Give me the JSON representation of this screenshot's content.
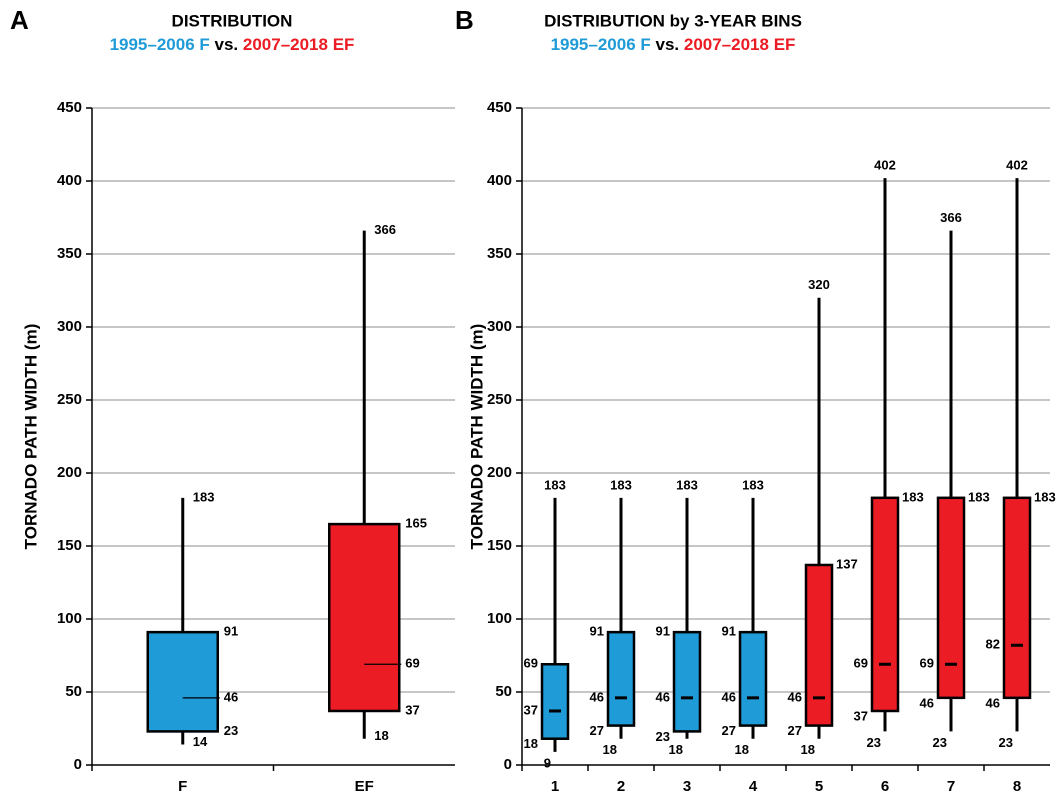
{
  "chart_data": [
    {
      "type": "box",
      "panel_label": "A",
      "title": "DISTRIBUTION",
      "subtitle": [
        {
          "text": "1995–2006 F",
          "color": "#1f9bd7"
        },
        {
          "text": "vs.",
          "color": "#000000"
        },
        {
          "text": "2007–2018 EF",
          "color": "#ec1c24"
        }
      ],
      "y_label": "TORNADO PATH WIDTH (m)",
      "categories": [
        "F",
        "EF"
      ],
      "boxes": [
        {
          "min": 14,
          "q1": 23,
          "median": 46,
          "q3": 91,
          "max": 183,
          "color": "#1f9bd7"
        },
        {
          "min": 18,
          "q1": 37,
          "median": 69,
          "q3": 165,
          "max": 366,
          "color": "#ec1c24"
        }
      ],
      "ylim": [
        0,
        450
      ],
      "yticks": [
        0,
        50,
        100,
        150,
        200,
        250,
        300,
        350,
        400,
        450
      ],
      "grid": true
    },
    {
      "type": "box",
      "panel_label": "B",
      "title": "DISTRIBUTION  by 3-YEAR BINS",
      "subtitle": [
        {
          "text": "1995–2006 F",
          "color": "#1f9bd7"
        },
        {
          "text": "vs.",
          "color": "#000000"
        },
        {
          "text": "2007–2018 EF",
          "color": "#ec1c24"
        }
      ],
      "y_label": "TORNADO PATH WIDTH (m)",
      "categories": [
        "1",
        "2",
        "3",
        "4",
        "5",
        "6",
        "7",
        "8"
      ],
      "boxes": [
        {
          "min": 9,
          "q1": 18,
          "median": 37,
          "q3": 69,
          "max": 183,
          "color": "#1f9bd7"
        },
        {
          "min": 18,
          "q1": 27,
          "median": 46,
          "q3": 91,
          "max": 183,
          "color": "#1f9bd7"
        },
        {
          "min": 18,
          "q1": 23,
          "median": 46,
          "q3": 91,
          "max": 183,
          "color": "#1f9bd7"
        },
        {
          "min": 18,
          "q1": 27,
          "median": 46,
          "q3": 91,
          "max": 183,
          "color": "#1f9bd7"
        },
        {
          "min": 18,
          "q1": 27,
          "median": 46,
          "q3": 137,
          "max": 320,
          "color": "#ec1c24"
        },
        {
          "min": 23,
          "q1": 37,
          "median": 69,
          "q3": 183,
          "max": 402,
          "color": "#ec1c24"
        },
        {
          "min": 23,
          "q1": 46,
          "median": 69,
          "q3": 183,
          "max": 366,
          "color": "#ec1c24"
        },
        {
          "min": 23,
          "q1": 46,
          "median": 82,
          "q3": 183,
          "max": 402,
          "color": "#ec1c24"
        }
      ],
      "ylim": [
        0,
        450
      ],
      "yticks": [
        0,
        50,
        100,
        150,
        200,
        250,
        300,
        350,
        400,
        450
      ],
      "grid": true
    }
  ]
}
